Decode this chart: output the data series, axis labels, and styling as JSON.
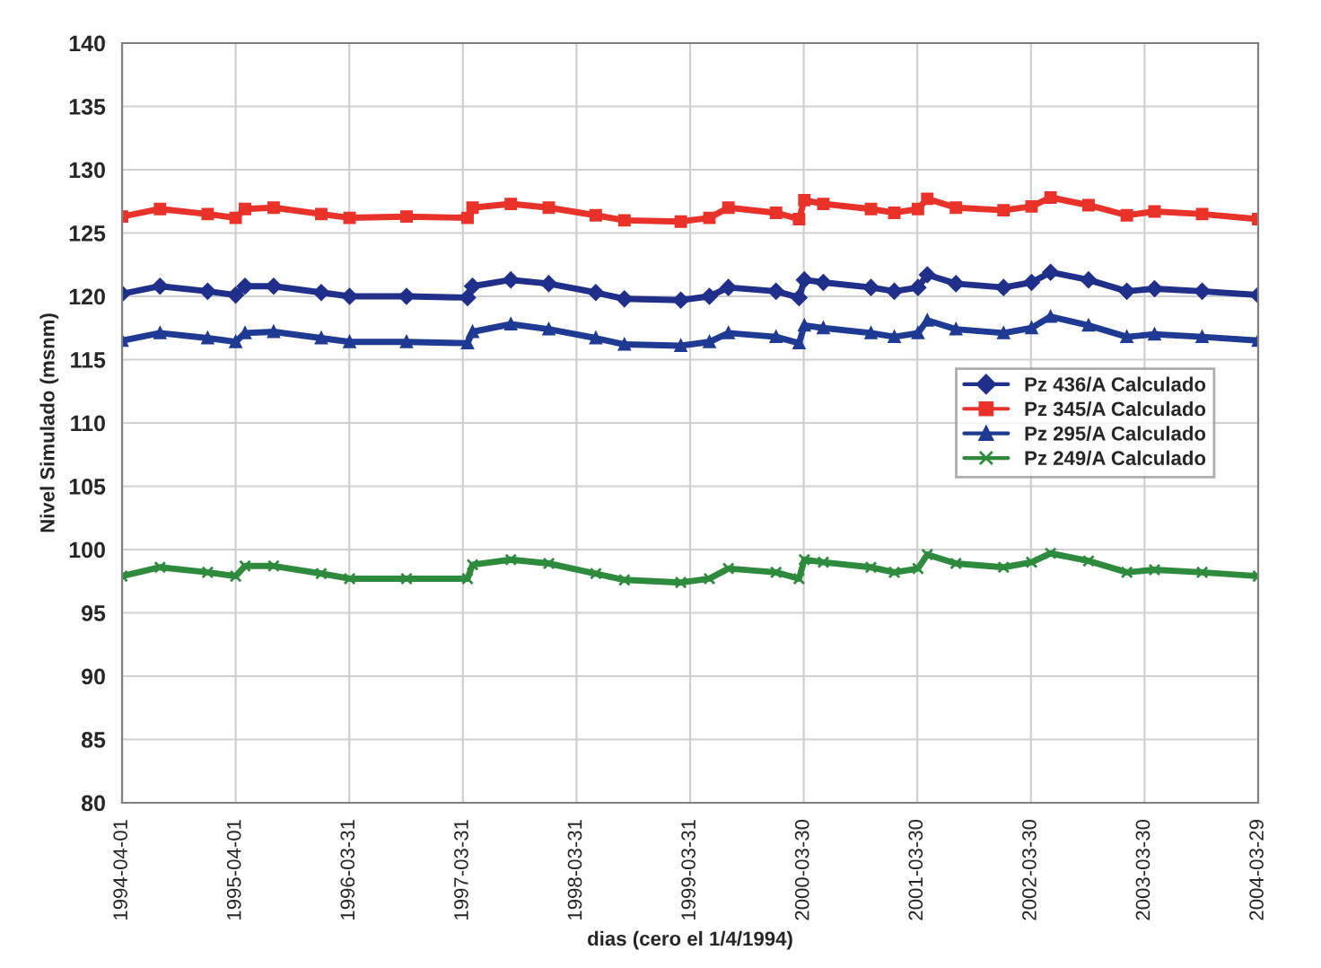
{
  "chart_data": {
    "type": "line",
    "xlabel": "dias (cero el 1/4/1994)",
    "ylabel": "Nivel Simulado (msnm)",
    "x": [
      "1994-04-01",
      "1994-08-01",
      "1995-01-01",
      "1995-04-01",
      "1995-05-01",
      "1995-08-01",
      "1996-01-01",
      "1996-04-01",
      "1996-10-01",
      "1997-04-15",
      "1997-05-01",
      "1997-09-01",
      "1998-01-01",
      "1998-06-01",
      "1998-09-01",
      "1999-03-01",
      "1999-06-01",
      "1999-08-01",
      "2000-01-01",
      "2000-03-15",
      "2000-04-01",
      "2000-06-01",
      "2000-11-01",
      "2001-01-15",
      "2001-04-01",
      "2001-05-01",
      "2001-08-01",
      "2002-01-01",
      "2002-04-01",
      "2002-06-01",
      "2002-10-01",
      "2003-02-01",
      "2003-05-01",
      "2003-10-01",
      "2004-03-29"
    ],
    "series": [
      {
        "name": "Pz 436/A Calculado",
        "color": "#1f2f8a",
        "marker": "diamond",
        "values": [
          120.2,
          120.8,
          120.4,
          120.1,
          120.8,
          120.8,
          120.3,
          120.0,
          120.0,
          119.9,
          120.8,
          121.3,
          121.0,
          120.3,
          119.8,
          119.7,
          120.0,
          120.7,
          120.4,
          119.9,
          121.3,
          121.1,
          120.7,
          120.4,
          120.7,
          121.7,
          121.0,
          120.7,
          121.1,
          121.9,
          121.3,
          120.4,
          120.6,
          120.4,
          120.1
        ]
      },
      {
        "name": "Pz 345/A Calculado",
        "color": "#e8322a",
        "marker": "square",
        "values": [
          126.3,
          126.9,
          126.5,
          126.2,
          126.9,
          127.0,
          126.5,
          126.2,
          126.3,
          126.2,
          127.0,
          127.3,
          127.0,
          126.4,
          126.0,
          125.9,
          126.2,
          127.0,
          126.6,
          126.1,
          127.6,
          127.3,
          126.9,
          126.6,
          126.9,
          127.7,
          127.0,
          126.8,
          127.1,
          127.8,
          127.2,
          126.4,
          126.7,
          126.5,
          126.1
        ]
      },
      {
        "name": "Pz 295/A Calculado",
        "color": "#1f3a93",
        "marker": "triangle",
        "values": [
          116.5,
          117.1,
          116.7,
          116.4,
          117.1,
          117.2,
          116.7,
          116.4,
          116.4,
          116.3,
          117.2,
          117.8,
          117.4,
          116.7,
          116.2,
          116.1,
          116.4,
          117.1,
          116.8,
          116.3,
          117.7,
          117.5,
          117.1,
          116.8,
          117.1,
          118.1,
          117.4,
          117.1,
          117.5,
          118.4,
          117.7,
          116.8,
          117.0,
          116.8,
          116.5
        ]
      },
      {
        "name": "Pz 249/A Calculado",
        "color": "#2e8b3e",
        "marker": "cross",
        "values": [
          97.9,
          98.6,
          98.2,
          97.9,
          98.7,
          98.7,
          98.1,
          97.7,
          97.7,
          97.7,
          98.8,
          99.2,
          98.9,
          98.1,
          97.6,
          97.4,
          97.7,
          98.5,
          98.2,
          97.7,
          99.2,
          99.0,
          98.6,
          98.2,
          98.5,
          99.6,
          98.9,
          98.6,
          99.0,
          99.7,
          99.1,
          98.2,
          98.4,
          98.2,
          97.9
        ]
      }
    ],
    "xlim": [
      "1994-04-01",
      "2004-03-29"
    ],
    "xticks": [
      "1994-04-01",
      "1995-04-01",
      "1996-03-31",
      "1997-03-31",
      "1998-03-31",
      "1999-03-31",
      "2000-03-30",
      "2001-03-30",
      "2002-03-30",
      "2003-03-30",
      "2004-03-29"
    ],
    "ylim": [
      80,
      140
    ],
    "yticks": [
      80,
      85,
      90,
      95,
      100,
      105,
      110,
      115,
      120,
      125,
      130,
      135,
      140
    ],
    "grid": true,
    "legend": "right",
    "line_style": "solid"
  }
}
